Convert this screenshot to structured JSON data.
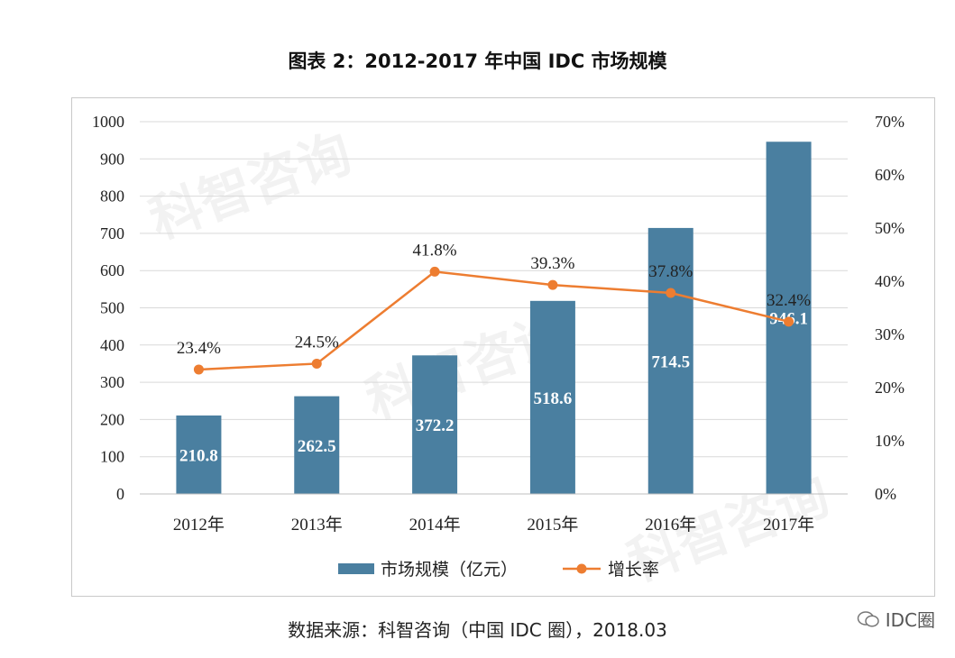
{
  "title": "图表 2：2012-2017 年中国 IDC 市场规模",
  "source": "数据来源：科智咨询（中国 IDC 圈），2018.03",
  "watermark": "科智咨询",
  "brand": "IDC圈",
  "colors": {
    "bar": "#4a7fa0",
    "line": "#ed7d31",
    "grid": "#d9d9d9"
  },
  "chart_data": {
    "type": "bar",
    "categories": [
      "2012年",
      "2013年",
      "2014年",
      "2015年",
      "2016年",
      "2017年"
    ],
    "series": [
      {
        "name": "市场规模（亿元）",
        "type": "bar",
        "axis": "left",
        "values": [
          210.8,
          262.5,
          372.2,
          518.6,
          714.5,
          946.1
        ],
        "labels": [
          "210.8",
          "262.5",
          "372.2",
          "518.6",
          "714.5",
          "946.1"
        ]
      },
      {
        "name": "增长率",
        "type": "line",
        "axis": "right",
        "values": [
          23.4,
          24.5,
          41.8,
          39.3,
          37.8,
          32.4
        ],
        "labels": [
          "23.4%",
          "24.5%",
          "41.8%",
          "39.3%",
          "37.8%",
          "32.4%"
        ]
      }
    ],
    "y_left": {
      "range": [
        0,
        1000
      ],
      "ticks": [
        "0",
        "100",
        "200",
        "300",
        "400",
        "500",
        "600",
        "700",
        "800",
        "900",
        "1000"
      ]
    },
    "y_right": {
      "range": [
        0,
        70
      ],
      "ticks": [
        "0%",
        "10%",
        "20%",
        "30%",
        "40%",
        "50%",
        "60%",
        "70%"
      ]
    },
    "grid": true,
    "legend": "bottom"
  }
}
